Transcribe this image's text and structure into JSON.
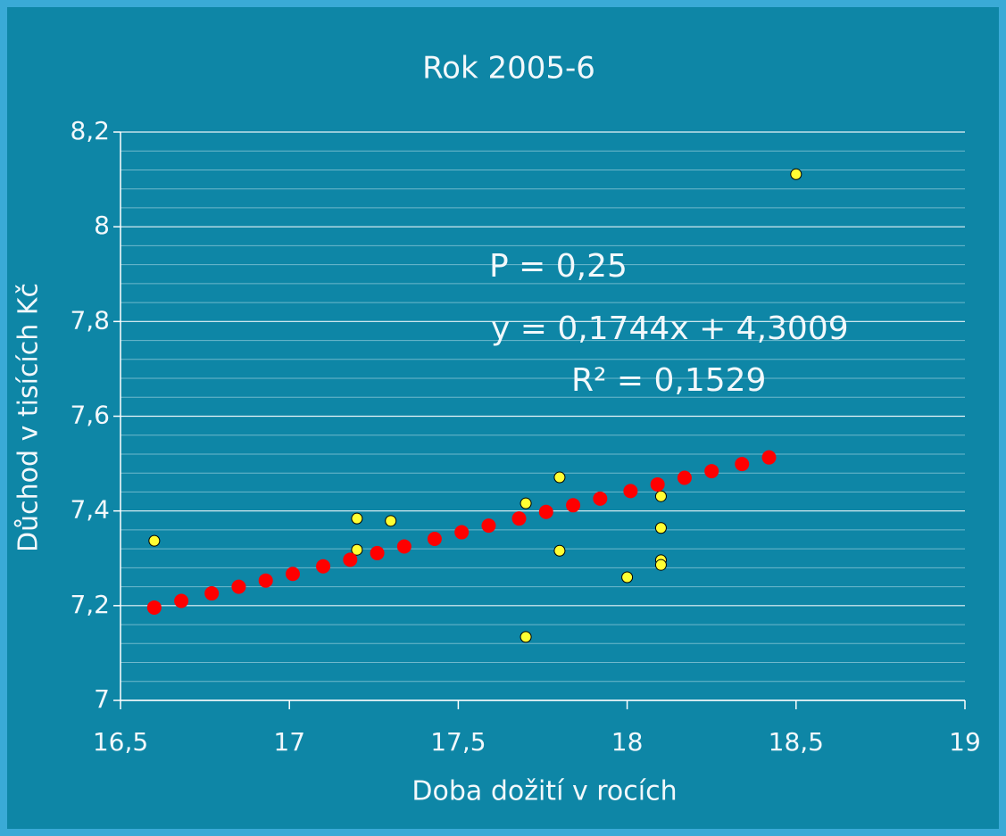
{
  "chart_data": {
    "type": "scatter",
    "title": "Rok  2005-6",
    "xlabel": "Doba dožití v rocích",
    "ylabel": "Důchod v tisících Kč",
    "annotations": [
      "P = 0,25",
      "y = 0,1744x + 4,3009",
      "R² = 0,1529"
    ],
    "xlim": [
      16.5,
      19
    ],
    "ylim": [
      7,
      8.2
    ],
    "xticks": [
      {
        "value": 16.5,
        "label": "16,5"
      },
      17,
      {
        "value": 17.5,
        "label": "17,5"
      },
      18,
      {
        "value": 18.5,
        "label": "18,5"
      },
      19
    ],
    "yticks": [
      7,
      {
        "value": 7.2,
        "label": "7,2"
      },
      {
        "value": 7.4,
        "label": "7,4"
      },
      {
        "value": 7.6,
        "label": "7,6"
      },
      {
        "value": 7.8,
        "label": "7,8"
      },
      8,
      {
        "value": 8.2,
        "label": "8,2"
      }
    ],
    "yminorticks": [
      7.04,
      7.08,
      7.12,
      7.16,
      7.24,
      7.28,
      7.32,
      7.36,
      7.44,
      7.48,
      7.52,
      7.56,
      7.64,
      7.68,
      7.72,
      7.76,
      7.84,
      7.88,
      7.92,
      7.96,
      8.04,
      8.08,
      8.12,
      8.16
    ],
    "grid": true,
    "series": [
      {
        "color": "#ffff33",
        "x": [
          16.6,
          17.2,
          17.2,
          17.3,
          17.7,
          17.7,
          17.8,
          17.8,
          18.0,
          18.1,
          18.1,
          18.1,
          18.1,
          18.5
        ],
        "values": [
          7.337,
          7.384,
          7.318,
          7.379,
          7.416,
          7.134,
          7.471,
          7.316,
          7.26,
          7.431,
          7.364,
          7.296,
          7.286,
          8.111
        ]
      },
      {
        "color": "#ff0000",
        "x": [
          16.6,
          16.68,
          16.77,
          16.85,
          16.93,
          17.01,
          17.1,
          17.18,
          17.26,
          17.34,
          17.43,
          17.51,
          17.59,
          17.68,
          17.76,
          17.84,
          17.92,
          18.01,
          18.09,
          18.17,
          18.25,
          18.34,
          18.42
        ],
        "values": [
          7.196,
          7.21,
          7.226,
          7.24,
          7.253,
          7.267,
          7.283,
          7.297,
          7.311,
          7.325,
          7.341,
          7.355,
          7.369,
          7.384,
          7.398,
          7.412,
          7.426,
          7.442,
          7.456,
          7.47,
          7.484,
          7.499,
          7.513
        ]
      }
    ]
  }
}
